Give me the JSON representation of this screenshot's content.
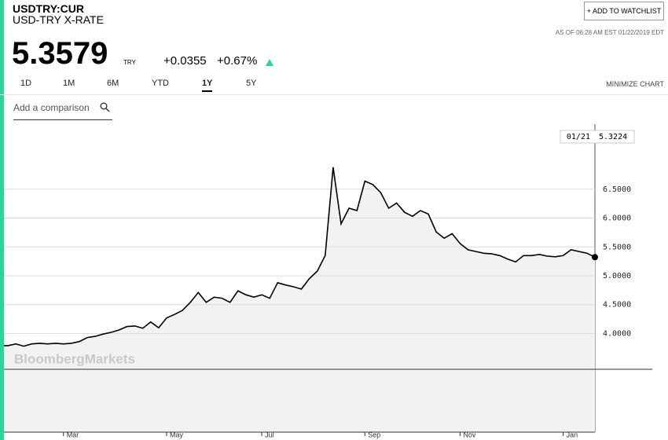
{
  "header": {
    "symbol": "USDTRY:CUR",
    "name": "USD-TRY X-RATE",
    "button": "+ ADD TO WATCHLIST",
    "as_of": "AS OF 06:28 AM EST 01/22/2019 EDT",
    "price": "5.3579",
    "currency": "TRY",
    "change": "+0.0355",
    "change_pct": "+0.67%"
  },
  "tabs": [
    "1D",
    "1M",
    "6M",
    "YTD",
    "1Y",
    "5Y"
  ],
  "active_tab": 4,
  "minimize": "MINIMIZE CHART",
  "comparison_placeholder": "Add a comparison",
  "watermark": "BloombergMarkets",
  "chart_data": {
    "type": "line",
    "annotation": "01/21",
    "categories": [
      null,
      null,
      null,
      null,
      null,
      null,
      null,
      null,
      "Mar",
      null,
      null,
      null,
      null,
      null,
      null,
      null,
      null,
      null,
      null,
      null,
      null,
      "May",
      null,
      null,
      null,
      null,
      null,
      null,
      null,
      null,
      null,
      null,
      null,
      "Jul",
      null,
      null,
      null,
      null,
      null,
      null,
      null,
      null,
      null,
      null,
      null,
      null,
      "Sep",
      null,
      null,
      null,
      null,
      null,
      null,
      null,
      null,
      null,
      null,
      null,
      "Nov",
      null,
      null,
      null,
      null,
      null,
      null,
      null,
      null,
      null,
      null,
      null,
      null,
      "Jan",
      null,
      null,
      null,
      null
    ],
    "series": [
      {
        "name": "USDTRY",
        "color": "#000000",
        "values": [
          3.79,
          3.79,
          3.82,
          3.78,
          3.82,
          3.83,
          3.82,
          3.83,
          3.82,
          3.83,
          3.86,
          3.93,
          3.95,
          3.99,
          4.02,
          4.06,
          4.12,
          4.13,
          4.09,
          4.2,
          4.1,
          4.27,
          4.33,
          4.4,
          4.54,
          4.71,
          4.54,
          4.63,
          4.61,
          4.54,
          4.74,
          4.67,
          4.63,
          4.67,
          4.61,
          4.88,
          4.84,
          4.81,
          4.77,
          4.95,
          5.08,
          5.35,
          6.88,
          5.9,
          6.17,
          6.13,
          6.64,
          6.58,
          6.44,
          6.17,
          6.26,
          6.1,
          6.03,
          6.13,
          6.07,
          5.76,
          5.65,
          5.73,
          5.56,
          5.45,
          5.42,
          5.39,
          5.38,
          5.35,
          5.29,
          5.24,
          5.35,
          5.35,
          5.37,
          5.34,
          5.33,
          5.35,
          5.45,
          5.42,
          5.39,
          5.3224
        ]
      }
    ],
    "ylim": [
      3.38,
      7.6
    ],
    "yticks": [
      {
        "value": 4,
        "label": "4.0000"
      },
      {
        "value": 4.5,
        "label": "4.5000"
      },
      {
        "value": 5,
        "label": "5.0000"
      },
      {
        "value": 5.5,
        "label": "5.5000"
      },
      {
        "value": 6,
        "label": "6.0000"
      },
      {
        "value": 6.5,
        "label": "6.5000"
      }
    ],
    "grid": true,
    "area_color": "#f2f2f2"
  }
}
